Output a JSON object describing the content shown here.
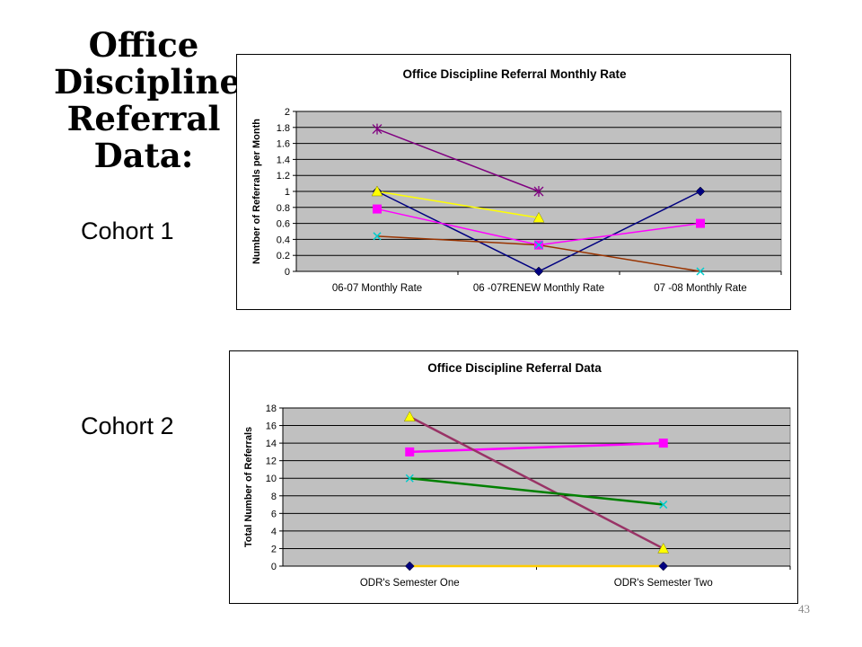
{
  "slide": {
    "title_lines": [
      "Office",
      "Discipline",
      "Referral",
      "Data:"
    ],
    "cohort1_label": "Cohort 1",
    "cohort2_label": "Cohort 2",
    "page_number": "43"
  },
  "chart_data": [
    {
      "type": "line",
      "title": "Office Discipline Referral Monthly Rate",
      "xlabel": "",
      "ylabel": "Number of Referrals per Month",
      "categories": [
        "06-07 Monthly Rate",
        "06 -07RENEW Monthly Rate",
        "07 -08 Monthly Rate"
      ],
      "ylim": [
        0,
        2
      ],
      "yticks": [
        "0",
        "0.2",
        "0.4",
        "0.6",
        "0.8",
        "1",
        "1.2",
        "1.4",
        "1.6",
        "1.8",
        "2"
      ],
      "grid": true,
      "legend": "none",
      "plot_background": "#c0c0c0",
      "series": [
        {
          "values": [
            1.0,
            0.0,
            1.0
          ],
          "color": "#000080",
          "marker": "diamond"
        },
        {
          "values": [
            0.78,
            0.33,
            0.6
          ],
          "color": "#ff00ff",
          "marker": "square"
        },
        {
          "values": [
            1.0,
            0.67,
            null
          ],
          "color": "#ffff00",
          "marker": "triangle"
        },
        {
          "values": [
            0.44,
            0.33,
            0.0
          ],
          "color": "#993300",
          "marker": "x-cyan"
        },
        {
          "values": [
            1.78,
            1.0,
            null
          ],
          "color": "#800080",
          "marker": "star"
        }
      ]
    },
    {
      "type": "line",
      "title": "Office Discipline Referral Data",
      "xlabel": "",
      "ylabel": "Total Number of Referrals",
      "categories": [
        "ODR's Semester One",
        "ODR's Semester Two"
      ],
      "ylim": [
        0,
        18
      ],
      "yticks": [
        "0",
        "2",
        "4",
        "6",
        "8",
        "10",
        "12",
        "14",
        "16",
        "18"
      ],
      "grid": true,
      "legend": "none",
      "plot_background": "#c0c0c0",
      "series": [
        {
          "values": [
            0,
            0
          ],
          "color": "#ffcc00",
          "marker": "diamond",
          "marker_color": "#000080"
        },
        {
          "values": [
            13,
            14
          ],
          "color": "#ff00ff",
          "marker": "square"
        },
        {
          "values": [
            17,
            2
          ],
          "color": "#993366",
          "marker": "triangle"
        },
        {
          "values": [
            10,
            7
          ],
          "color": "#008000",
          "marker": "x-cyan"
        }
      ]
    }
  ]
}
